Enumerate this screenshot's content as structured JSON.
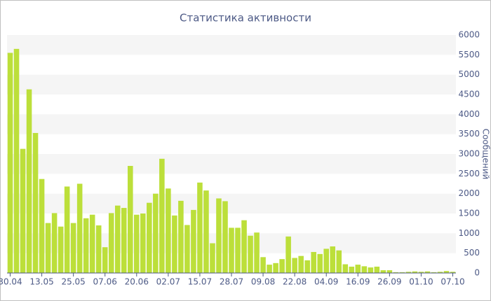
{
  "chart_data": {
    "type": "bar",
    "title": "Статистика активности",
    "y_label": "Сообщений",
    "categories": [
      "30.04",
      null,
      null,
      null,
      null,
      "13.05",
      null,
      null,
      null,
      null,
      "25.05",
      null,
      null,
      null,
      null,
      "07.06",
      null,
      null,
      null,
      null,
      "20.06",
      null,
      null,
      null,
      null,
      "02.07",
      null,
      null,
      null,
      null,
      "15.07",
      null,
      null,
      null,
      null,
      "28.07",
      null,
      null,
      null,
      null,
      "09.08",
      null,
      null,
      null,
      null,
      "22.08",
      null,
      null,
      null,
      null,
      "04.09",
      null,
      null,
      null,
      null,
      "16.09",
      null,
      null,
      null,
      null,
      "26.09",
      null,
      null,
      null,
      null,
      "01.10",
      null,
      null,
      null,
      null,
      "07.10"
    ],
    "values": [
      5550,
      5650,
      3130,
      4630,
      3530,
      2370,
      1260,
      1510,
      1170,
      2180,
      1260,
      2250,
      1380,
      1470,
      1200,
      650,
      1510,
      1700,
      1640,
      2700,
      1470,
      1500,
      1770,
      2000,
      2880,
      2130,
      1450,
      1820,
      1210,
      1590,
      2280,
      2080,
      750,
      1880,
      1810,
      1140,
      1140,
      1330,
      940,
      1020,
      400,
      210,
      250,
      350,
      920,
      380,
      430,
      320,
      530,
      480,
      610,
      670,
      570,
      220,
      160,
      210,
      170,
      140,
      160,
      70,
      70,
      20,
      20,
      30,
      40,
      30,
      40,
      20,
      30,
      50,
      30
    ],
    "color": "#bcdf3a",
    "ylim": [
      0,
      6000
    ],
    "yticks": [
      0,
      500,
      1000,
      1500,
      2000,
      2500,
      3000,
      3500,
      4000,
      4500,
      5000,
      5500,
      6000
    ],
    "grid": true
  }
}
